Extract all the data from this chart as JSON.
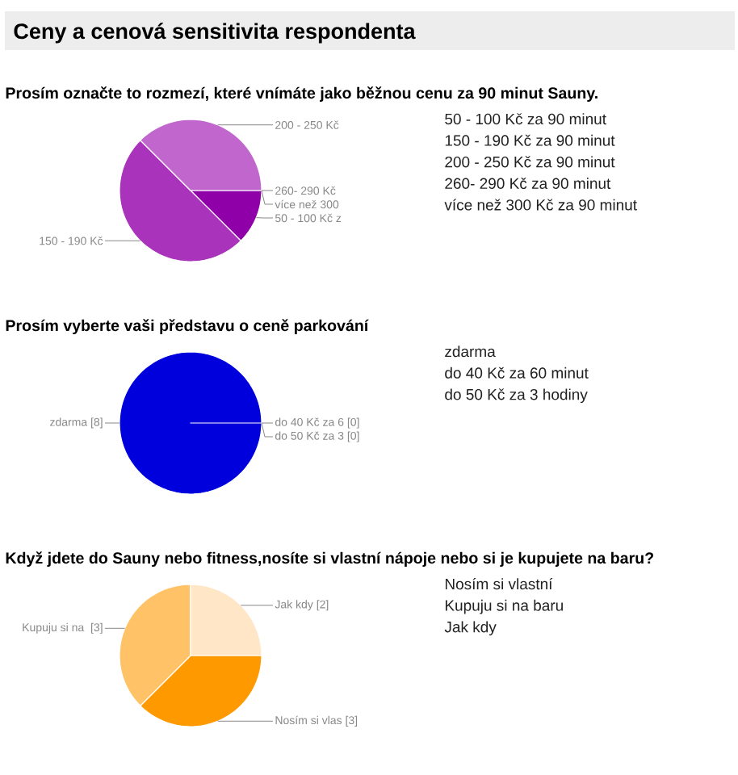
{
  "chart_data": [
    {
      "type": "pie",
      "title": "Ceny a cenová sensitivita respondenta",
      "subtitle": "Prosím označte to rozmezí, které vnímáte jako běžnou cenu za 90 minut Sauny.",
      "categories": [
        "50 - 100 Kč z",
        "150 - 190 Kč",
        "200 - 250 Kč",
        "260- 290 Kč",
        "více než 300"
      ],
      "values": [
        12.5,
        50,
        37.5,
        0,
        0
      ],
      "colors": [
        "#9000a8",
        "#aa33bb",
        "#c066cc",
        "#d699dd",
        "#e6bbee"
      ],
      "annotations": [
        "50 - 100 Kč za 90 minut",
        "150 - 190 Kč za 90 minut",
        "200 - 250 Kč za 90 minut",
        "260- 290 Kč za 90 minut",
        "více než 300 Kč za 90 minut"
      ]
    },
    {
      "type": "pie",
      "title": "Prosím vyberte vaši představu o ceně parkování",
      "categories": [
        "zdarma",
        "do 40 Kč za 6",
        "do 50 Kč za 3"
      ],
      "values": [
        8,
        0,
        0
      ],
      "value_labels": [
        "[8]",
        "[0]",
        "[0]"
      ],
      "colors": [
        "#0000dd",
        "#3366ee",
        "#6699ff"
      ],
      "annotations": [
        "zdarma",
        "do 40 Kč za 60 minut",
        "do 50 Kč za 3 hodiny"
      ]
    },
    {
      "type": "pie",
      "title": "Když jdete do Sauny nebo fitness,nosíte si vlastní nápoje nebo si je kupujete na baru?",
      "categories": [
        "Nosím si vlas",
        "Kupuju si na ",
        "Jak kdy"
      ],
      "values": [
        3,
        3,
        2
      ],
      "value_labels": [
        "[3]",
        "[3]",
        "[2]"
      ],
      "colors": [
        "#ff9900",
        "#ffc266",
        "#ffe6c6"
      ],
      "annotations": [
        "Nosím si vlastní",
        "Kupuju si na baru",
        "Jak kdy"
      ]
    }
  ]
}
